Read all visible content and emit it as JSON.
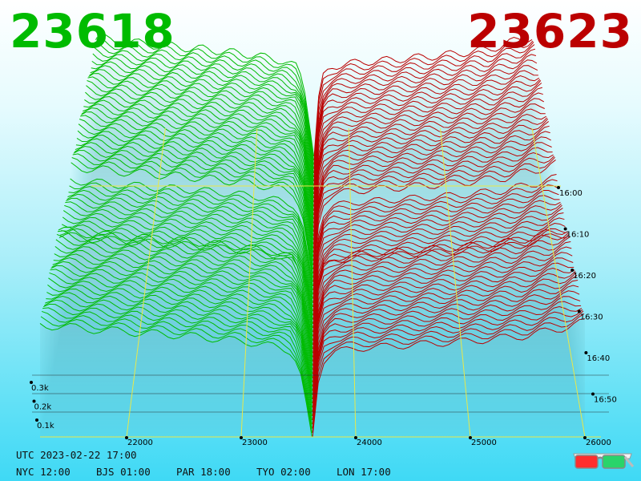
{
  "header": {
    "bid_price": "23618",
    "ask_price": "23623",
    "bid_color": "#00bb00",
    "ask_color": "#bb0000"
  },
  "time_info": {
    "utc": "UTC 2023-02-22 17:00",
    "zones": [
      "NYC 12:00",
      "BJS 01:00",
      "PAR 18:00",
      "TYO 02:00",
      "LON 17:00"
    ]
  },
  "icons": {
    "glasses": "3d-glasses-icon"
  },
  "chart_data": {
    "type": "area",
    "mid_price": 23620,
    "x_axis": {
      "range": [
        21300,
        26000
      ],
      "ticks": [
        22000,
        23000,
        24000,
        25000,
        26000
      ],
      "tick_labels": [
        "22000",
        "23000",
        "24000",
        "25000",
        "26000"
      ]
    },
    "y_axis": {
      "ticks": [
        0.1,
        0.2,
        0.3
      ],
      "tick_labels": [
        "0.1k",
        "0.2k",
        "0.3k"
      ],
      "unit": "k"
    },
    "z_axis": {
      "ticks": [
        "16:00",
        "16:10",
        "16:20",
        "16:30",
        "16:40",
        "16:50"
      ]
    },
    "series": [
      {
        "side": "bid",
        "color": "#00bb00",
        "x": [
          21300,
          21600,
          22000,
          22500,
          23000,
          23300,
          23450,
          23520,
          23580,
          23618
        ],
        "cum_depth": [
          0.61,
          0.59,
          0.57,
          0.55,
          0.52,
          0.49,
          0.46,
          0.34,
          0.14,
          0.0
        ]
      },
      {
        "side": "ask",
        "color": "#bb0000",
        "x": [
          23623,
          23650,
          23700,
          23800,
          24000,
          24500,
          25000,
          25500,
          26000
        ],
        "cum_depth": [
          0.0,
          0.22,
          0.4,
          0.46,
          0.48,
          0.5,
          0.52,
          0.55,
          0.62
        ]
      }
    ]
  }
}
